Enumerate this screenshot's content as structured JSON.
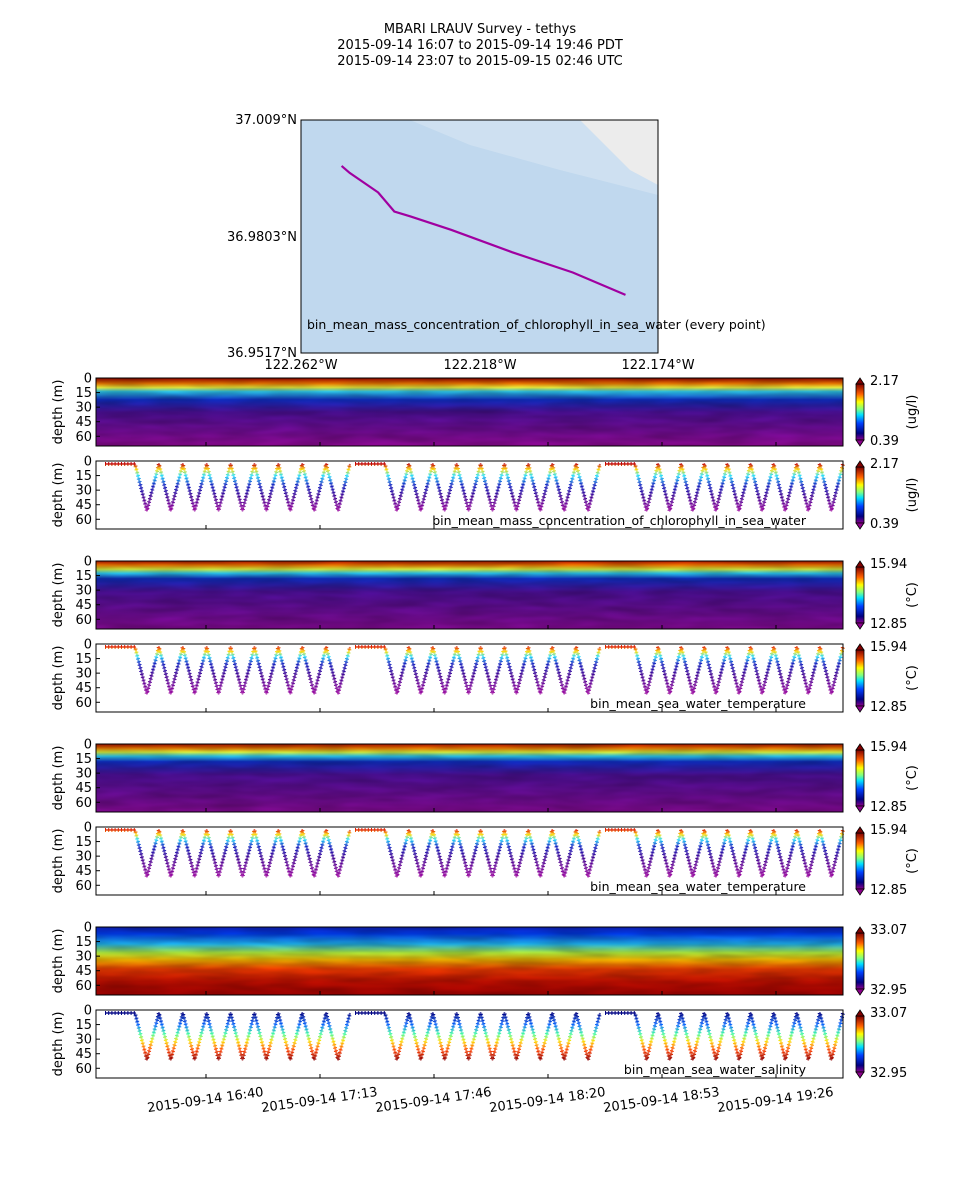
{
  "title": {
    "line1": "MBARI LRAUV Survey - tethys",
    "line2": "2015-09-14 16:07  to  2015-09-14 19:46 PDT",
    "line3": "2015-09-14 23:07  to  2015-09-15 02:46 UTC"
  },
  "colors": {
    "track": "#a000a0",
    "map_water": "#c0d8ee",
    "map_land": "#ececec"
  },
  "chart_data": [
    {
      "type": "scatter",
      "name": "map",
      "annotation": "bin_mean_mass_concentration_of_chlorophyll_in_sea_water (every point)",
      "xlabels": [
        "122.262°W",
        "122.218°W",
        "122.174°W"
      ],
      "ylabels": [
        "37.009°N",
        "36.9803°N",
        "36.9517°N"
      ],
      "track_lon": [
        -122.252,
        -122.25,
        -122.243,
        -122.239,
        -122.235,
        -122.225,
        -122.21,
        -122.195,
        -122.182
      ],
      "track_lat": [
        36.9977,
        36.996,
        36.9912,
        36.9865,
        36.9853,
        36.982,
        36.9765,
        36.9715,
        36.966
      ]
    },
    {
      "type": "heatmap",
      "name": "chlorophyll-section",
      "variable": "bin_mean_mass_concentration_of_chlorophyll_in_sea_water",
      "ylabel": "depth (m)",
      "yticks": [
        "0",
        "15",
        "30",
        "45",
        "60"
      ],
      "cbar_min": "0.39",
      "cbar_max": "2.17",
      "cbar_label": "(ug/l)"
    },
    {
      "type": "scatter",
      "name": "chlorophyll-profile",
      "variable": "bin_mean_mass_concentration_of_chlorophyll_in_sea_water",
      "ylabel": "depth (m)",
      "yticks": [
        "0",
        "15",
        "30",
        "45",
        "60"
      ],
      "cbar_min": "0.39",
      "cbar_max": "2.17",
      "cbar_label": "(ug/l)"
    },
    {
      "type": "heatmap",
      "name": "temperature-section",
      "variable": "bin_mean_sea_water_temperature",
      "ylabel": "depth (m)",
      "yticks": [
        "0",
        "15",
        "30",
        "45",
        "60"
      ],
      "cbar_min": "12.85",
      "cbar_max": "15.94",
      "cbar_label": "(°C)"
    },
    {
      "type": "scatter",
      "name": "temperature-profile",
      "variable": "bin_mean_sea_water_temperature",
      "ylabel": "depth (m)",
      "yticks": [
        "0",
        "15",
        "30",
        "45",
        "60"
      ],
      "cbar_min": "12.85",
      "cbar_max": "15.94",
      "cbar_label": "(°C)"
    },
    {
      "type": "heatmap",
      "name": "temperature-section-2",
      "variable": "bin_mean_sea_water_temperature",
      "ylabel": "depth (m)",
      "yticks": [
        "0",
        "15",
        "30",
        "45",
        "60"
      ],
      "cbar_min": "12.85",
      "cbar_max": "15.94",
      "cbar_label": "(°C)"
    },
    {
      "type": "scatter",
      "name": "temperature-profile-2",
      "variable": "bin_mean_sea_water_temperature",
      "ylabel": "depth (m)",
      "yticks": [
        "0",
        "15",
        "30",
        "45",
        "60"
      ],
      "cbar_min": "12.85",
      "cbar_max": "15.94",
      "cbar_label": "(°C)"
    },
    {
      "type": "heatmap",
      "name": "salinity-section",
      "variable": "bin_mean_sea_water_salinity",
      "ylabel": "depth (m)",
      "yticks": [
        "0",
        "15",
        "30",
        "45",
        "60"
      ],
      "cbar_min": "32.95",
      "cbar_max": "33.07",
      "cbar_label": ""
    },
    {
      "type": "scatter",
      "name": "salinity-profile",
      "variable": "bin_mean_sea_water_salinity",
      "ylabel": "depth (m)",
      "yticks": [
        "0",
        "15",
        "30",
        "45",
        "60"
      ],
      "cbar_min": "32.95",
      "cbar_max": "33.07",
      "cbar_label": ""
    }
  ],
  "time_axis": {
    "ticks": [
      "2015-09-14 16:40",
      "2015-09-14 17:13",
      "2015-09-14 17:46",
      "2015-09-14 18:20",
      "2015-09-14 18:53",
      "2015-09-14 19:26"
    ]
  }
}
